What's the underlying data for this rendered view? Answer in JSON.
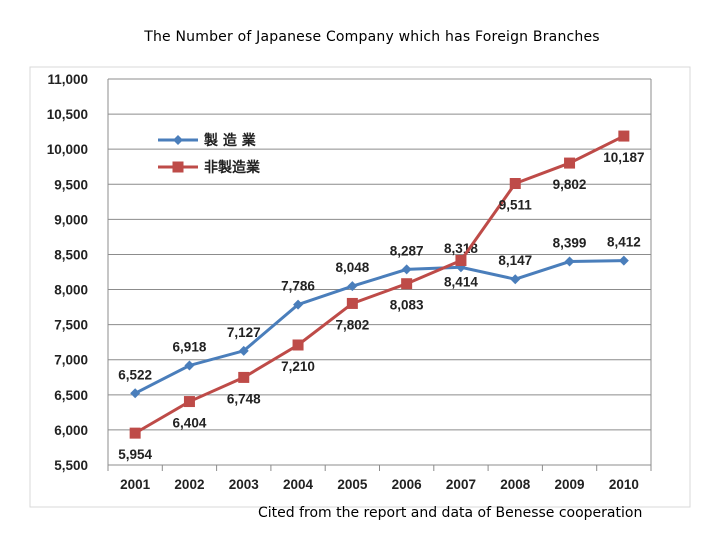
{
  "title": "The Number of Japanese Company which has Foreign Branches",
  "source_note": "Cited from the report and data of Benesse cooperation",
  "chart_data": {
    "type": "line",
    "title": "The Number of Japanese Company which has Foreign Branches",
    "xlabel": "",
    "ylabel": "",
    "categories": [
      "2001",
      "2002",
      "2003",
      "2004",
      "2005",
      "2006",
      "2007",
      "2008",
      "2009",
      "2010"
    ],
    "ylim": [
      5500,
      11000
    ],
    "yticks": [
      5500,
      6000,
      6500,
      7000,
      7500,
      8000,
      8500,
      9000,
      9500,
      10000,
      10500,
      11000
    ],
    "ytick_labels": [
      "5,500",
      "6,000",
      "6,500",
      "7,000",
      "7,500",
      "8,000",
      "8,500",
      "9,000",
      "9,500",
      "10,000",
      "10,500",
      "11,000"
    ],
    "grid": true,
    "legend_position": "top-left",
    "series": [
      {
        "name": "製 造 業",
        "color": "#4a7ebb",
        "marker": "diamond",
        "values": [
          6522,
          6918,
          7127,
          7786,
          8048,
          8287,
          8318,
          8147,
          8399,
          8412
        ],
        "labels": [
          "6,522",
          "6,918",
          "7,127",
          "7,786",
          "8,048",
          "8,287",
          "8,318",
          "8,147",
          "8,399",
          "8,412"
        ],
        "label_pos": [
          "above",
          "above",
          "above",
          "above",
          "above",
          "above",
          "above",
          "above",
          "above",
          "above"
        ]
      },
      {
        "name": "非製造業",
        "color": "#be4b48",
        "marker": "square",
        "values": [
          5954,
          6404,
          6748,
          7210,
          7802,
          8083,
          8414,
          9511,
          9802,
          10187
        ],
        "labels": [
          "5,954",
          "6,404",
          "6,748",
          "7,210",
          "7,802",
          "8,083",
          "8,414",
          "9,511",
          "9,802",
          "10,187"
        ],
        "label_pos": [
          "below",
          "below",
          "below",
          "below",
          "below",
          "below",
          "below",
          "below",
          "below",
          "below"
        ]
      }
    ]
  }
}
